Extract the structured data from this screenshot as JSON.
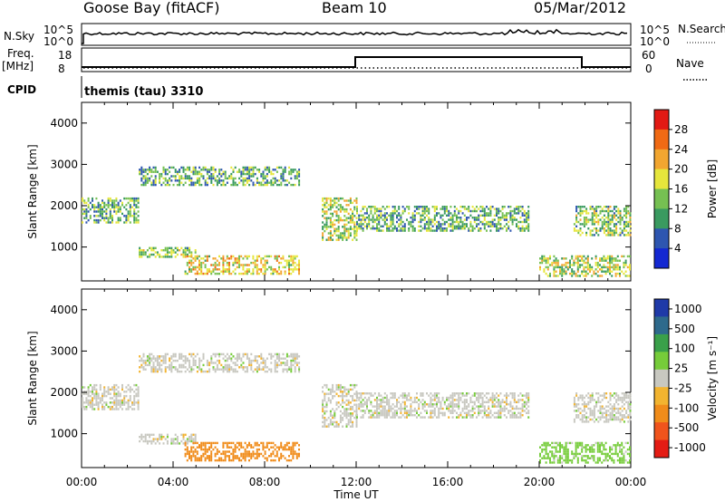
{
  "header": {
    "station": "Goose Bay (fitACF)",
    "beam": "Beam 10",
    "date": "05/Mar/2012"
  },
  "status_panels": {
    "nsky_label": "N.Sky",
    "nsearch_label": "N.Search",
    "noise_ticks": [
      "10^5",
      "10^0"
    ],
    "freq_label": "Freq.",
    "freq_unit": "[MHz]",
    "freq_ticks": [
      "18",
      "8"
    ],
    "nave_label": "Nave",
    "nave_ticks": [
      "60",
      "0"
    ],
    "cpid_label": "CPID",
    "cpid_value": "themis (tau) 3310"
  },
  "colors": {
    "power_scale": [
      "#1428d2",
      "#2e56b0",
      "#3a9a60",
      "#76c052",
      "#e6e63c",
      "#f2a630",
      "#f06a14",
      "#e21a14"
    ],
    "velocity_scale": [
      "#1f3aa8",
      "#2e6a8c",
      "#3aa04a",
      "#76cc3a",
      "#c8c8c0",
      "#f2b430",
      "#f08c1a",
      "#f0541c",
      "#e41c14"
    ]
  },
  "chart_data": [
    {
      "type": "heatmap",
      "name": "Power",
      "ylabel": "Slant Range [km]",
      "xlabel": "Time UT",
      "x_ticks": [
        "00:00",
        "04:00",
        "08:00",
        "12:00",
        "16:00",
        "20:00",
        "00:00"
      ],
      "y_ticks": [
        "1000",
        "2000",
        "3000",
        "4000"
      ],
      "xlim_hours": [
        0,
        24
      ],
      "ylim_km": [
        180,
        4500
      ],
      "colorbar_label": "Power [dB]",
      "colorbar_ticks": [
        "4",
        "8",
        "12",
        "16",
        "20",
        "24",
        "28"
      ],
      "range_bands": [
        {
          "t0": 0.0,
          "t1": 2.5,
          "r0": 1600,
          "r1": 2200,
          "level": 12
        },
        {
          "t0": 2.5,
          "t1": 9.5,
          "r0": 2500,
          "r1": 2950,
          "level": 12
        },
        {
          "t0": 2.5,
          "t1": 5.0,
          "r0": 750,
          "r1": 1000,
          "level": 14
        },
        {
          "t0": 4.5,
          "t1": 9.5,
          "r0": 350,
          "r1": 800,
          "level": 18
        },
        {
          "t0": 10.5,
          "t1": 12.0,
          "r0": 1200,
          "r1": 2200,
          "level": 16
        },
        {
          "t0": 12.0,
          "t1": 19.5,
          "r0": 1400,
          "r1": 2000,
          "level": 12
        },
        {
          "t0": 21.5,
          "t1": 24.0,
          "r0": 1300,
          "r1": 2000,
          "level": 14
        },
        {
          "t0": 20.0,
          "t1": 24.0,
          "r0": 300,
          "r1": 800,
          "level": 16
        }
      ]
    },
    {
      "type": "heatmap",
      "name": "Velocity",
      "ylabel": "Slant Range [km]",
      "xlabel": "Time UT",
      "x_ticks": [
        "00:00",
        "04:00",
        "08:00",
        "12:00",
        "16:00",
        "20:00",
        "00:00"
      ],
      "y_ticks": [
        "1000",
        "2000",
        "3000",
        "4000"
      ],
      "xlim_hours": [
        0,
        24
      ],
      "ylim_km": [
        180,
        4500
      ],
      "colorbar_label": "Velocity [m s⁻¹]",
      "colorbar_ticks": [
        "1000",
        "500",
        "100",
        "25",
        "-25",
        "-100",
        "-500",
        "-1000"
      ],
      "range_bands": [
        {
          "t0": 0.0,
          "t1": 2.5,
          "r0": 1600,
          "r1": 2200,
          "level": 0
        },
        {
          "t0": 2.5,
          "t1": 9.5,
          "r0": 2500,
          "r1": 2950,
          "level": 0
        },
        {
          "t0": 2.5,
          "t1": 5.0,
          "r0": 750,
          "r1": 1000,
          "level": 0
        },
        {
          "t0": 4.5,
          "t1": 9.5,
          "r0": 350,
          "r1": 800,
          "level": -200
        },
        {
          "t0": 10.5,
          "t1": 12.0,
          "r0": 1200,
          "r1": 2200,
          "level": 0
        },
        {
          "t0": 12.0,
          "t1": 19.5,
          "r0": 1400,
          "r1": 2000,
          "level": 0
        },
        {
          "t0": 21.5,
          "t1": 24.0,
          "r0": 1300,
          "r1": 2000,
          "level": 0
        },
        {
          "t0": 20.0,
          "t1": 24.0,
          "r0": 300,
          "r1": 800,
          "level": 50
        }
      ]
    }
  ]
}
